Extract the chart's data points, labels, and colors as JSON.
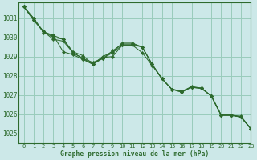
{
  "title": "Graphe pression niveau de la mer (hPa)",
  "background_color": "#cce8e8",
  "grid_color": "#99ccbb",
  "line_color": "#2d6a2d",
  "xlim": [
    -0.5,
    23
  ],
  "ylim": [
    1024.5,
    1031.8
  ],
  "yticks": [
    1025,
    1026,
    1027,
    1028,
    1029,
    1030,
    1031
  ],
  "xticks": [
    0,
    1,
    2,
    3,
    4,
    5,
    6,
    7,
    8,
    9,
    10,
    11,
    12,
    13,
    14,
    15,
    16,
    17,
    18,
    19,
    20,
    21,
    22,
    23
  ],
  "lines": [
    {
      "x": [
        0,
        1,
        2,
        3,
        4,
        5,
        6,
        7,
        8,
        9,
        10,
        11,
        12,
        13,
        14,
        15,
        16,
        17,
        18,
        19,
        20,
        21,
        22,
        23
      ],
      "y": [
        1031.6,
        1030.9,
        1030.3,
        1029.9,
        1029.8,
        1029.2,
        1028.9,
        1028.7,
        1028.9,
        1029.3,
        1029.65,
        1029.65,
        1029.5,
        1028.6,
        1027.85,
        1027.3,
        1027.15,
        1027.4,
        1027.35,
        1026.95,
        1025.95,
        1025.95,
        1025.85,
        1025.25
      ]
    },
    {
      "x": [
        0,
        1,
        2,
        3,
        4,
        5,
        6,
        7,
        8,
        9,
        10,
        11,
        12,
        13,
        14,
        15,
        16,
        17,
        18,
        19,
        20,
        21,
        22,
        23
      ],
      "y": [
        1031.6,
        1031.0,
        1030.25,
        1030.1,
        1029.9,
        1029.25,
        1029.05,
        1028.6,
        1029.0,
        1029.25,
        1029.7,
        1029.7,
        1029.5,
        1028.6,
        1027.85,
        1027.3,
        1027.2,
        1027.4,
        1027.35,
        1026.95,
        1025.95,
        1025.95,
        1025.85,
        1025.25
      ]
    },
    {
      "x": [
        0,
        1,
        2,
        3,
        4,
        5,
        6,
        7,
        8,
        9,
        10,
        11,
        12,
        13,
        14,
        15,
        16,
        17,
        18,
        19,
        20,
        21,
        22,
        23
      ],
      "y": [
        1031.6,
        1031.0,
        1030.3,
        1030.1,
        1029.25,
        1029.1,
        1028.85,
        1028.6,
        1028.95,
        1029.0,
        1029.6,
        1029.6,
        1029.2,
        1028.55,
        1027.85,
        1027.3,
        1027.2,
        1027.4,
        1027.35,
        1026.95,
        1025.95,
        1025.95,
        1025.85,
        1025.25
      ]
    },
    {
      "x": [
        0,
        1,
        2,
        3,
        4,
        5,
        6,
        7,
        8,
        9,
        10,
        11,
        12,
        13,
        14,
        15,
        16,
        17,
        18,
        19,
        20,
        21,
        22,
        23
      ],
      "y": [
        1031.6,
        1030.9,
        1030.3,
        1030.0,
        1029.9,
        1029.2,
        1028.9,
        1028.6,
        1028.9,
        1029.2,
        1029.6,
        1029.6,
        1029.5,
        1028.6,
        1027.85,
        1027.3,
        1027.15,
        1027.45,
        1027.35,
        1026.95,
        1025.95,
        1025.95,
        1025.9,
        1025.25
      ]
    }
  ]
}
